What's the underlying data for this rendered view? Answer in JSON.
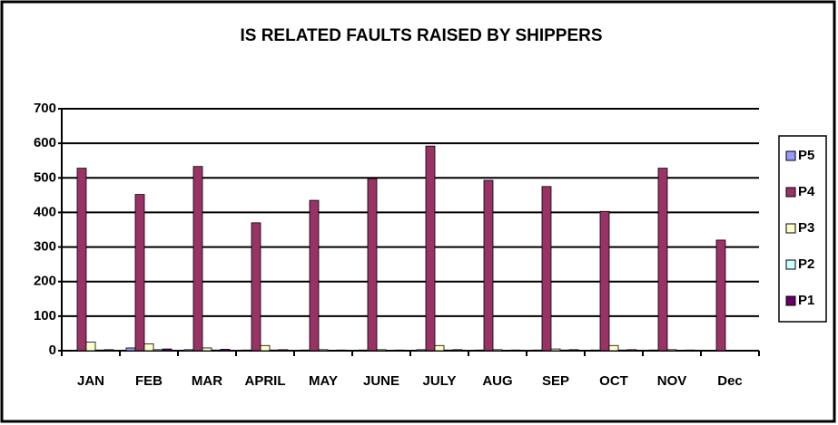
{
  "chart_data": {
    "type": "bar",
    "title": "IS RELATED FAULTS RAISED BY SHIPPERS",
    "categories": [
      "JAN",
      "FEB",
      "MAR",
      "APRIL",
      "MAY",
      "JUNE",
      "JULY",
      "AUG",
      "SEP",
      "OCT",
      "NOV",
      "Dec"
    ],
    "series": [
      {
        "name": "P5",
        "color": "#9999ff",
        "values": [
          0,
          8,
          3,
          2,
          2,
          2,
          3,
          2,
          2,
          2,
          2,
          1
        ]
      },
      {
        "name": "P4",
        "color": "#993366",
        "values": [
          528,
          452,
          533,
          370,
          435,
          498,
          592,
          493,
          475,
          403,
          528,
          320
        ]
      },
      {
        "name": "P3",
        "color": "#ffffcc",
        "values": [
          25,
          20,
          8,
          15,
          3,
          3,
          15,
          3,
          5,
          15,
          3,
          0
        ]
      },
      {
        "name": "P2",
        "color": "#ccffff",
        "values": [
          2,
          3,
          2,
          2,
          1,
          1,
          2,
          1,
          2,
          2,
          1,
          0
        ]
      },
      {
        "name": "P1",
        "color": "#660066",
        "values": [
          3,
          5,
          4,
          3,
          2,
          2,
          3,
          2,
          3,
          3,
          2,
          1
        ]
      }
    ],
    "ylim": [
      0,
      700
    ],
    "yticks": [
      0,
      100,
      200,
      300,
      400,
      500,
      600,
      700
    ],
    "grid": true,
    "legend": "right"
  }
}
